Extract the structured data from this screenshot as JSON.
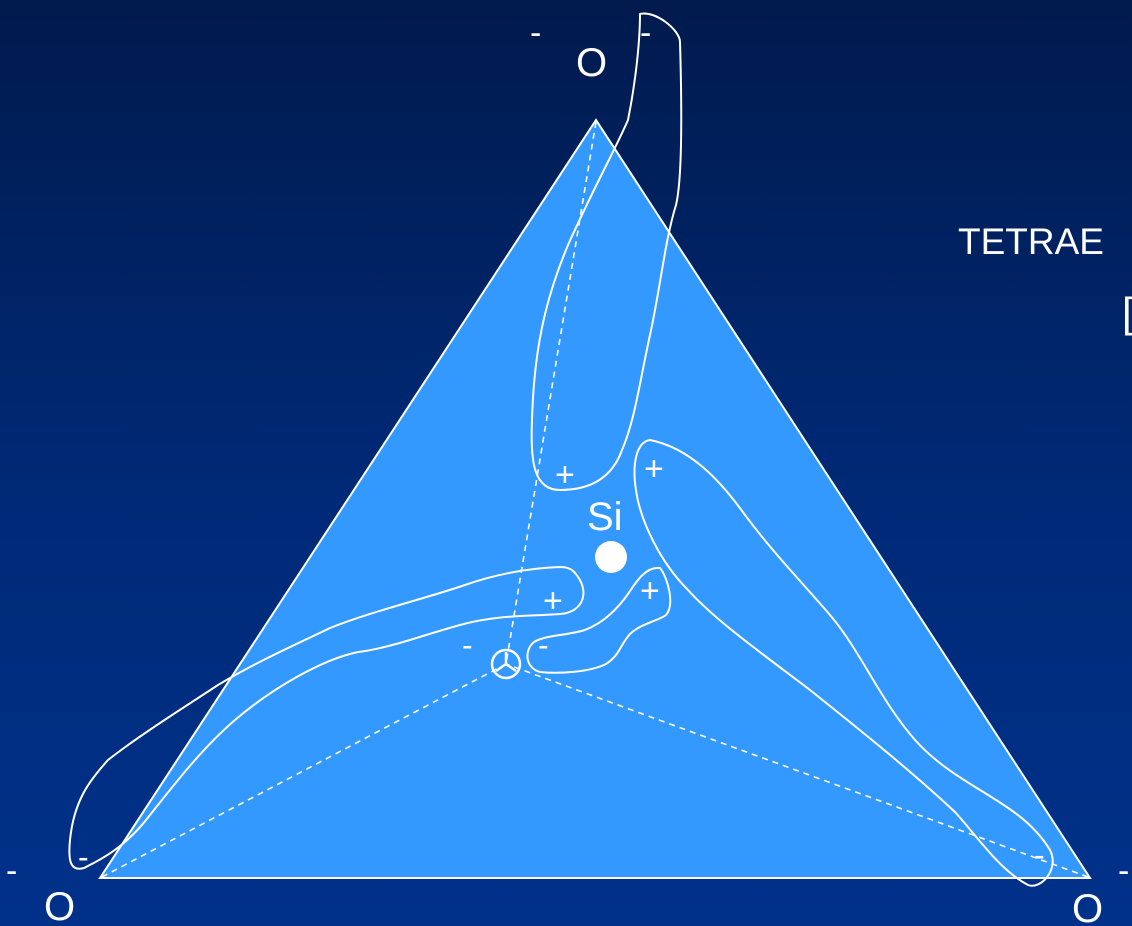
{
  "diagram": {
    "side_title": "TETRAE",
    "side_bracket": "[",
    "center_atom": "Si",
    "oxygen": "O",
    "charges": {
      "neg": "-",
      "pos": "+"
    },
    "colors": {
      "background_top": "#001a4d",
      "background_bottom": "#00318a",
      "tetrahedron_fill": "#3399ff",
      "line": "#ffffff"
    }
  }
}
